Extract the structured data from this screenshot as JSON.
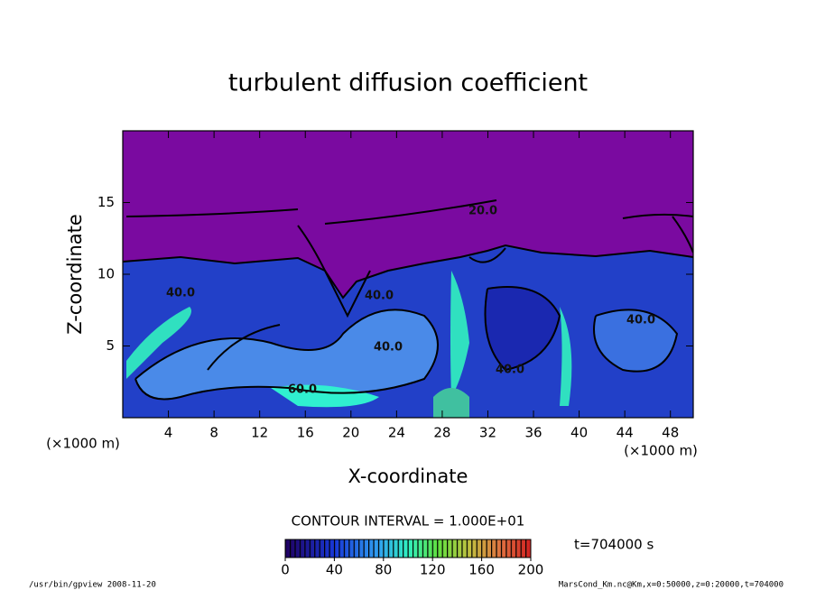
{
  "chart_data": {
    "type": "contour",
    "title": "turbulent diffusion coefficient",
    "xlabel": "X-coordinate",
    "ylabel": "Z-coordinate",
    "x_unit": "(×1000 m)",
    "y_unit": "(×1000 m)",
    "xlim": [
      0,
      50
    ],
    "xticks": [
      4,
      8,
      12,
      16,
      20,
      24,
      28,
      32,
      36,
      40,
      44,
      48
    ],
    "ylim": [
      0,
      20
    ],
    "yticks": [
      5,
      10,
      15
    ],
    "contour_labels": [
      "20.0",
      "40.0",
      "40.0",
      "40.0",
      "60.0",
      "40.0",
      "40.0"
    ],
    "colorbar": {
      "lim": [
        0,
        200
      ],
      "ticks": [
        0,
        40,
        80,
        120,
        160,
        200
      ]
    },
    "contour_interval": "CONTOUR INTERVAL = 1.000E+01",
    "time_label": "t=704000 s",
    "footer_left": "/usr/bin/gpview  2008-11-20",
    "footer_right": "MarsCond_Km.nc@Km,x=0:50000,z=0:20000,t=704000"
  }
}
